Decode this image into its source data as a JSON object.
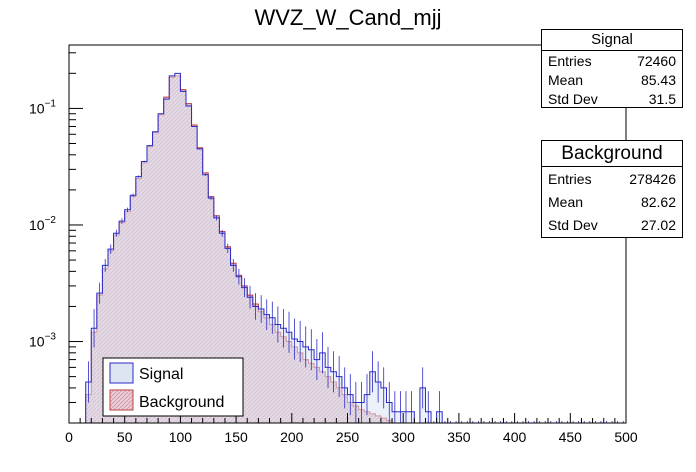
{
  "chart_data": {
    "type": "bar",
    "title": "WVZ_W_Cand_mjj",
    "xlabel": "",
    "ylabel": "",
    "xlim": [
      0,
      500
    ],
    "ylim": [
      0.0002,
      0.35
    ],
    "log_y": true,
    "bin_width": 5,
    "x_ticks": [
      "0",
      "50",
      "100",
      "150",
      "200",
      "250",
      "300",
      "350",
      "400",
      "450",
      "500"
    ],
    "y_ticks": [
      {
        "value": 0.001,
        "base": "10",
        "exp": "−3"
      },
      {
        "value": 0.01,
        "base": "10",
        "exp": "−2"
      },
      {
        "value": 0.1,
        "base": "10",
        "exp": "−1"
      }
    ],
    "legend_position": "bottom-left",
    "series": [
      {
        "name": "Signal",
        "color": "#2b2bc8",
        "fill": "#dde4f2",
        "x_start": 15,
        "values": [
          0.00045,
          0.0013,
          0.0026,
          0.0045,
          0.0062,
          0.0085,
          0.0108,
          0.0135,
          0.018,
          0.026,
          0.035,
          0.048,
          0.063,
          0.09,
          0.12,
          0.19,
          0.2,
          0.14,
          0.105,
          0.07,
          0.045,
          0.027,
          0.017,
          0.0115,
          0.0085,
          0.0063,
          0.0045,
          0.0036,
          0.0029,
          0.0024,
          0.002,
          0.0019,
          0.0017,
          0.0016,
          0.0014,
          0.0013,
          0.0012,
          0.00105,
          0.001,
          0.0009,
          0.00085,
          0.0007,
          0.0008,
          0.0006,
          0.00055,
          0.0005,
          0.0004,
          0.00035,
          0.0003,
          0.0003,
          0.00035,
          0.00055,
          0.00045,
          0.0004,
          0.0003,
          0.00025,
          0.00025,
          0.00025,
          0.00025,
          0.0002,
          0.0004,
          0.00025,
          0.0002,
          0.00025
        ]
      },
      {
        "name": "Background",
        "color": "#c04040",
        "fill": "#e9cdd6",
        "x_start": 15,
        "values": [
          0.00035,
          0.0012,
          0.0025,
          0.0042,
          0.006,
          0.0082,
          0.0105,
          0.013,
          0.0175,
          0.025,
          0.034,
          0.047,
          0.062,
          0.088,
          0.125,
          0.185,
          0.19,
          0.145,
          0.11,
          0.072,
          0.046,
          0.028,
          0.0175,
          0.012,
          0.0088,
          0.0065,
          0.0047,
          0.0037,
          0.003,
          0.0025,
          0.0021,
          0.0018,
          0.0016,
          0.0014,
          0.0012,
          0.0011,
          0.001,
          0.0009,
          0.0008,
          0.0007,
          0.00065,
          0.0006,
          0.00055,
          0.0005,
          0.00045,
          0.0004,
          0.00035,
          0.0003,
          0.00028,
          0.00026,
          0.00025,
          0.00024,
          0.00023,
          0.00022,
          0.00021,
          0.0002,
          0.0002
        ]
      }
    ]
  },
  "stats": [
    {
      "title": "Signal",
      "rows": [
        {
          "label": "Entries",
          "value": "72460"
        },
        {
          "label": "Mean",
          "value": "85.43"
        },
        {
          "label": "Std Dev",
          "value": "31.5"
        }
      ]
    },
    {
      "title": "Background",
      "rows": [
        {
          "label": "Entries",
          "value": "278426"
        },
        {
          "label": "Mean",
          "value": "82.62"
        },
        {
          "label": "Std Dev",
          "value": "27.02"
        }
      ]
    }
  ]
}
